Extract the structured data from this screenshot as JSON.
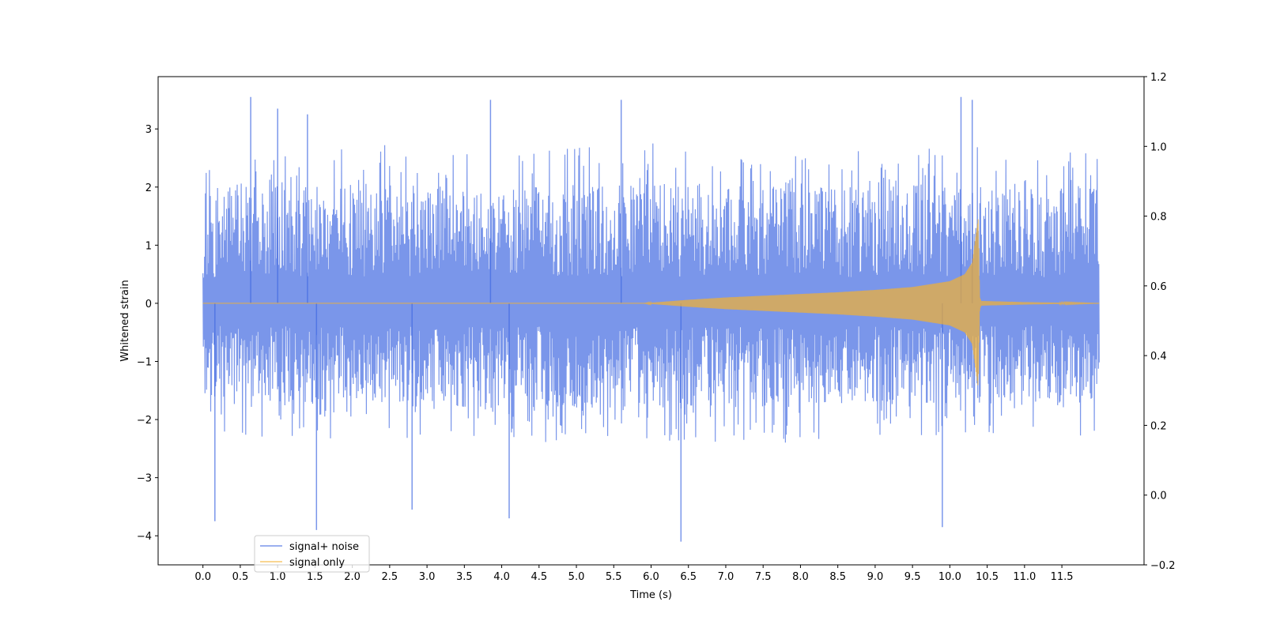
{
  "chart_data": {
    "type": "line",
    "xlabel": "Time (s)",
    "ylabel": "Whitened strain",
    "xlim": [
      -0.6,
      12.6
    ],
    "ylim": [
      -4.5,
      3.9
    ],
    "y2lim": [
      -0.2,
      1.2
    ],
    "x_ticks": [
      0.0,
      0.5,
      1.0,
      1.5,
      2.0,
      2.5,
      3.0,
      3.5,
      4.0,
      4.5,
      5.0,
      5.5,
      6.0,
      6.5,
      7.0,
      7.5,
      8.0,
      8.5,
      9.0,
      9.5,
      10.0,
      10.5,
      11.0,
      11.5
    ],
    "x_tick_labels": [
      "0.0",
      "0.5",
      "1.0",
      "1.5",
      "2.0",
      "2.5",
      "3.0",
      "3.5",
      "4.0",
      "4.5",
      "5.0",
      "5.5",
      "6.0",
      "6.5",
      "7.0",
      "7.5",
      "8.0",
      "8.5",
      "9.0",
      "9.5",
      "10.0",
      "10.5",
      "11.0",
      "11.5"
    ],
    "y_ticks": [
      -4,
      -3,
      -2,
      -1,
      0,
      1,
      2,
      3
    ],
    "y_tick_labels": [
      "−4",
      "−3",
      "−2",
      "−1",
      "0",
      "1",
      "2",
      "3"
    ],
    "y2_ticks": [
      -0.2,
      0.0,
      0.2,
      0.4,
      0.6,
      0.8,
      1.0,
      1.2
    ],
    "y2_tick_labels": [
      "−0.2",
      "0.0",
      "0.2",
      "0.4",
      "0.6",
      "0.8",
      "1.0",
      "1.2"
    ],
    "legend_position": "lower-left",
    "grid": false,
    "series": [
      {
        "name": "signal+ noise",
        "color": "#4169e1",
        "style": "dense noise, roughly ±2 typical, extremes about 3.5 and −4.1",
        "x_range": [
          0.0,
          12.0
        ],
        "envelope_upper": [
          [
            0.0,
            2.2
          ],
          [
            2.0,
            2.3
          ],
          [
            4.0,
            2.2
          ],
          [
            6.0,
            2.3
          ],
          [
            8.0,
            2.2
          ],
          [
            10.0,
            2.3
          ],
          [
            12.0,
            2.2
          ]
        ],
        "envelope_lower": [
          [
            0.0,
            -1.9
          ],
          [
            2.0,
            -2.0
          ],
          [
            4.0,
            -2.0
          ],
          [
            6.0,
            -2.0
          ],
          [
            8.0,
            -2.0
          ],
          [
            10.0,
            -1.9
          ],
          [
            12.0,
            -1.9
          ]
        ],
        "peaks": [
          [
            0.64,
            3.55
          ],
          [
            1.0,
            3.35
          ],
          [
            1.4,
            3.25
          ],
          [
            3.85,
            3.5
          ],
          [
            5.6,
            3.5
          ],
          [
            10.15,
            3.55
          ],
          [
            10.3,
            3.5
          ]
        ],
        "troughs": [
          [
            0.16,
            -3.75
          ],
          [
            1.52,
            -3.9
          ],
          [
            2.8,
            -3.55
          ],
          [
            4.1,
            -3.7
          ],
          [
            6.4,
            -4.1
          ],
          [
            9.9,
            -3.85
          ]
        ]
      },
      {
        "name": "signal only",
        "color": "#f4b030",
        "style": "chirp oscillation growing toward merger then ringdown",
        "x_range": [
          0.0,
          12.0
        ],
        "envelope": [
          [
            0.0,
            0.0
          ],
          [
            5.9,
            0.0
          ],
          [
            6.5,
            0.06
          ],
          [
            7.0,
            0.1
          ],
          [
            7.5,
            0.13
          ],
          [
            8.0,
            0.16
          ],
          [
            8.5,
            0.19
          ],
          [
            9.0,
            0.23
          ],
          [
            9.5,
            0.28
          ],
          [
            10.0,
            0.38
          ],
          [
            10.2,
            0.5
          ],
          [
            10.3,
            0.7
          ],
          [
            10.38,
            1.45
          ],
          [
            10.4,
            0.1
          ],
          [
            10.42,
            0.04
          ],
          [
            11.0,
            0.02
          ],
          [
            12.0,
            0.0
          ]
        ]
      }
    ]
  }
}
